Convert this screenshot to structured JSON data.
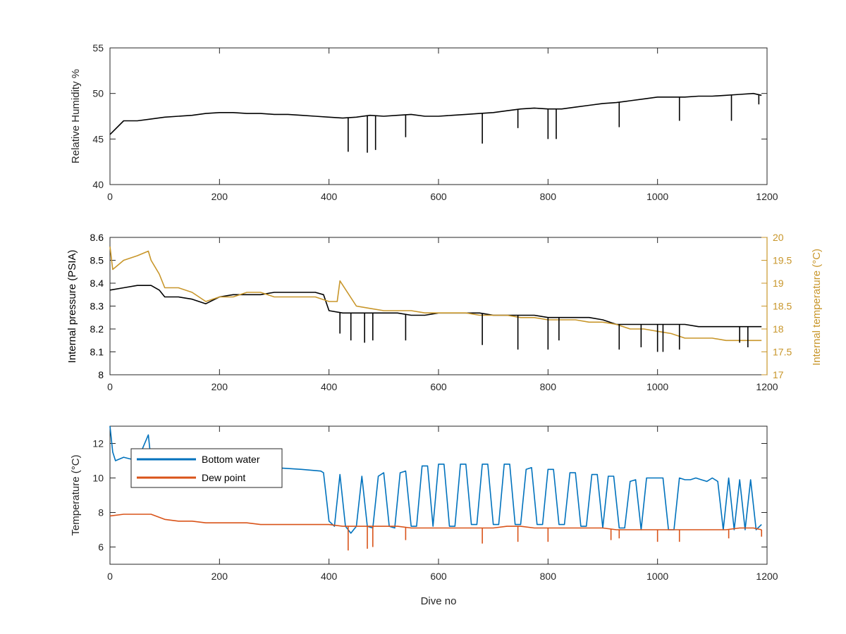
{
  "chart_data": [
    {
      "type": "line",
      "xlabel": "",
      "ylabel": "Relative Humidity %",
      "xlim": [
        0,
        1200
      ],
      "ylim": [
        40,
        55
      ],
      "xticks": [
        0,
        200,
        400,
        600,
        800,
        1000,
        1200
      ],
      "yticks": [
        40,
        45,
        50,
        55
      ],
      "grid": false,
      "series": [
        {
          "name": "",
          "color": "#000000",
          "x": [
            0,
            25,
            50,
            75,
            100,
            125,
            150,
            175,
            200,
            225,
            250,
            275,
            300,
            325,
            350,
            375,
            400,
            425,
            450,
            475,
            500,
            525,
            550,
            575,
            600,
            625,
            650,
            675,
            700,
            725,
            750,
            775,
            800,
            825,
            850,
            875,
            900,
            925,
            950,
            975,
            1000,
            1025,
            1050,
            1075,
            1100,
            1125,
            1150,
            1175,
            1190
          ],
          "y": [
            45.5,
            47.0,
            47.0,
            47.2,
            47.4,
            47.5,
            47.6,
            47.8,
            47.9,
            47.9,
            47.8,
            47.8,
            47.7,
            47.7,
            47.6,
            47.5,
            47.4,
            47.3,
            47.4,
            47.6,
            47.5,
            47.6,
            47.7,
            47.5,
            47.5,
            47.6,
            47.7,
            47.8,
            47.9,
            48.1,
            48.3,
            48.4,
            48.3,
            48.3,
            48.5,
            48.7,
            48.9,
            49.0,
            49.2,
            49.4,
            49.6,
            49.6,
            49.6,
            49.7,
            49.7,
            49.8,
            49.9,
            50.0,
            49.8
          ]
        }
      ],
      "dips": {
        "x": [
          435,
          470,
          485,
          540,
          680,
          745,
          800,
          815,
          930,
          1040,
          1135,
          1185
        ],
        "y": [
          43.6,
          43.5,
          43.8,
          45.2,
          44.5,
          46.2,
          45.0,
          45.0,
          46.3,
          47.0,
          47.0,
          48.8
        ]
      }
    },
    {
      "type": "line",
      "xlabel": "",
      "ylabel": "Internal pressure (PSIA)",
      "y2label": "Internal temperature (°C)",
      "xlim": [
        0,
        1200
      ],
      "ylim": [
        8,
        8.6
      ],
      "y2lim": [
        17,
        20
      ],
      "xticks": [
        0,
        200,
        400,
        600,
        800,
        1000,
        1200
      ],
      "yticks": [
        8,
        8.1,
        8.2,
        8.3,
        8.4,
        8.5,
        8.6
      ],
      "y2ticks": [
        17,
        17.5,
        18,
        18.5,
        19,
        19.5,
        20
      ],
      "grid": false,
      "series": [
        {
          "name": "",
          "axis": "left",
          "color": "#000000",
          "x": [
            0,
            25,
            50,
            75,
            90,
            100,
            125,
            150,
            175,
            200,
            225,
            250,
            275,
            300,
            325,
            350,
            375,
            390,
            400,
            425,
            450,
            475,
            500,
            525,
            550,
            575,
            600,
            625,
            650,
            675,
            700,
            725,
            750,
            775,
            800,
            825,
            850,
            875,
            900,
            925,
            950,
            975,
            1000,
            1025,
            1050,
            1075,
            1100,
            1125,
            1150,
            1175,
            1190
          ],
          "y": [
            8.37,
            8.38,
            8.39,
            8.39,
            8.37,
            8.34,
            8.34,
            8.33,
            8.31,
            8.34,
            8.35,
            8.35,
            8.35,
            8.36,
            8.36,
            8.36,
            8.36,
            8.35,
            8.28,
            8.27,
            8.27,
            8.27,
            8.27,
            8.27,
            8.26,
            8.26,
            8.27,
            8.27,
            8.27,
            8.27,
            8.26,
            8.26,
            8.26,
            8.26,
            8.25,
            8.25,
            8.25,
            8.25,
            8.24,
            8.22,
            8.22,
            8.22,
            8.22,
            8.22,
            8.22,
            8.21,
            8.21,
            8.21,
            8.21,
            8.21,
            8.21
          ]
        },
        {
          "name": "",
          "axis": "right",
          "color": "#C8962A",
          "x": [
            0,
            5,
            15,
            25,
            50,
            70,
            75,
            90,
            100,
            125,
            150,
            175,
            200,
            225,
            250,
            275,
            300,
            325,
            350,
            375,
            400,
            415,
            420,
            450,
            475,
            500,
            525,
            550,
            575,
            600,
            625,
            650,
            675,
            700,
            725,
            750,
            775,
            800,
            825,
            850,
            875,
            900,
            925,
            950,
            975,
            1000,
            1025,
            1050,
            1075,
            1100,
            1125,
            1150,
            1175,
            1190
          ],
          "y": [
            19.8,
            19.3,
            19.4,
            19.5,
            19.6,
            19.7,
            19.5,
            19.2,
            18.9,
            18.9,
            18.8,
            18.6,
            18.7,
            18.7,
            18.8,
            18.8,
            18.7,
            18.7,
            18.7,
            18.7,
            18.6,
            18.6,
            19.05,
            18.5,
            18.45,
            18.4,
            18.4,
            18.4,
            18.35,
            18.35,
            18.35,
            18.35,
            18.3,
            18.3,
            18.3,
            18.25,
            18.25,
            18.2,
            18.2,
            18.2,
            18.15,
            18.15,
            18.1,
            18.0,
            18.0,
            17.95,
            17.9,
            17.8,
            17.8,
            17.8,
            17.75,
            17.75,
            17.75,
            17.75
          ]
        }
      ],
      "dips": {
        "x": [
          420,
          440,
          465,
          480,
          540,
          680,
          745,
          800,
          820,
          930,
          970,
          1000,
          1010,
          1040,
          1150,
          1165
        ],
        "y": [
          8.18,
          8.15,
          8.14,
          8.15,
          8.15,
          8.13,
          8.11,
          8.11,
          8.15,
          8.11,
          8.12,
          8.1,
          8.1,
          8.11,
          8.14,
          8.12
        ]
      }
    },
    {
      "type": "line",
      "xlabel": "Dive no",
      "ylabel": "Temperature (°C)",
      "xlim": [
        0,
        1200
      ],
      "ylim": [
        5,
        13
      ],
      "xticks": [
        0,
        200,
        400,
        600,
        800,
        1000,
        1200
      ],
      "yticks": [
        6,
        8,
        10,
        12
      ],
      "grid": false,
      "legend_position": "top-left",
      "series": [
        {
          "name": "Bottom water",
          "color": "#0072BD",
          "x": [
            0,
            5,
            10,
            25,
            50,
            70,
            75,
            100,
            150,
            200,
            250,
            300,
            350,
            385,
            390,
            400,
            410,
            420,
            430,
            440,
            450,
            460,
            470,
            480,
            490,
            500,
            510,
            520,
            530,
            540,
            550,
            560,
            570,
            580,
            590,
            600,
            610,
            620,
            630,
            640,
            650,
            660,
            670,
            680,
            690,
            700,
            710,
            720,
            730,
            740,
            750,
            760,
            770,
            780,
            790,
            800,
            810,
            820,
            830,
            840,
            850,
            860,
            870,
            880,
            890,
            900,
            910,
            920,
            930,
            940,
            950,
            960,
            970,
            980,
            990,
            1000,
            1010,
            1020,
            1030,
            1040,
            1050,
            1060,
            1070,
            1080,
            1090,
            1100,
            1110,
            1120,
            1130,
            1140,
            1150,
            1160,
            1170,
            1180,
            1190
          ],
          "y": [
            13.0,
            11.5,
            11.0,
            11.2,
            11.0,
            12.5,
            11.0,
            10.9,
            10.8,
            10.7,
            10.6,
            10.6,
            10.5,
            10.4,
            10.3,
            7.5,
            7.2,
            10.2,
            7.2,
            6.8,
            7.2,
            10.1,
            7.2,
            7.1,
            10.1,
            10.3,
            7.2,
            7.1,
            10.3,
            10.4,
            7.2,
            7.2,
            10.7,
            10.7,
            7.2,
            10.8,
            10.8,
            7.2,
            7.2,
            10.8,
            10.8,
            7.3,
            7.3,
            10.8,
            10.8,
            7.3,
            7.3,
            10.8,
            10.8,
            7.3,
            7.3,
            10.5,
            10.6,
            7.3,
            7.3,
            10.5,
            10.5,
            7.3,
            7.3,
            10.3,
            10.3,
            7.2,
            7.2,
            10.2,
            10.2,
            7.1,
            10.1,
            10.1,
            7.1,
            7.1,
            9.8,
            9.9,
            7.0,
            10.0,
            10.0,
            10.0,
            10.0,
            7.0,
            7.0,
            10.0,
            9.9,
            9.9,
            10.0,
            9.9,
            9.8,
            10.0,
            9.8,
            7.0,
            10.0,
            7.0,
            9.9,
            7.0,
            9.9,
            7.0,
            7.3
          ]
        },
        {
          "name": "Dew point",
          "color": "#D95319",
          "x": [
            0,
            25,
            50,
            75,
            100,
            125,
            150,
            175,
            200,
            225,
            250,
            275,
            300,
            325,
            350,
            375,
            400,
            425,
            450,
            475,
            500,
            525,
            550,
            575,
            600,
            625,
            650,
            675,
            700,
            725,
            750,
            775,
            800,
            825,
            850,
            875,
            900,
            925,
            950,
            975,
            1000,
            1025,
            1050,
            1075,
            1100,
            1125,
            1150,
            1175,
            1190
          ],
          "y": [
            7.8,
            7.9,
            7.9,
            7.9,
            7.6,
            7.5,
            7.5,
            7.4,
            7.4,
            7.4,
            7.4,
            7.3,
            7.3,
            7.3,
            7.3,
            7.3,
            7.3,
            7.2,
            7.2,
            7.2,
            7.2,
            7.2,
            7.1,
            7.1,
            7.1,
            7.1,
            7.1,
            7.1,
            7.1,
            7.2,
            7.2,
            7.1,
            7.1,
            7.1,
            7.1,
            7.1,
            7.1,
            7.0,
            7.0,
            7.0,
            7.0,
            7.0,
            7.0,
            7.0,
            7.0,
            7.0,
            7.1,
            7.1,
            7.0
          ]
        }
      ],
      "dips": {
        "x": [
          435,
          470,
          480,
          540,
          680,
          745,
          800,
          915,
          930,
          1000,
          1040,
          1130,
          1190
        ],
        "y": [
          5.8,
          5.9,
          6.0,
          6.4,
          6.2,
          6.3,
          6.3,
          6.4,
          6.5,
          6.3,
          6.3,
          6.5,
          6.6
        ]
      }
    }
  ]
}
